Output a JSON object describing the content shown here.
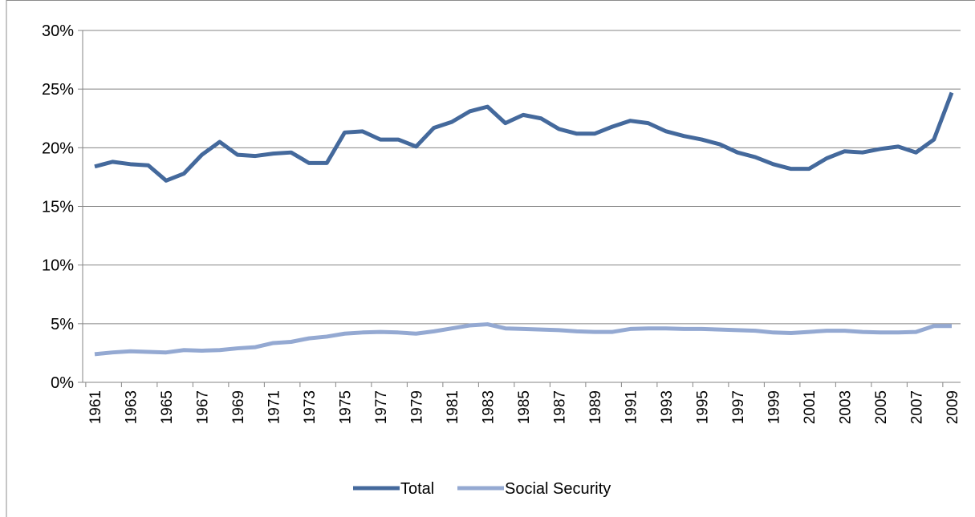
{
  "chart_data": {
    "type": "line",
    "title": "",
    "xlabel": "",
    "ylabel": "",
    "ylim": [
      0,
      30
    ],
    "yticks": [
      "0%",
      "5%",
      "10%",
      "15%",
      "20%",
      "25%",
      "30%"
    ],
    "x": [
      1961,
      1962,
      1963,
      1964,
      1965,
      1966,
      1967,
      1968,
      1969,
      1970,
      1971,
      1972,
      1973,
      1974,
      1975,
      1976,
      1977,
      1978,
      1979,
      1980,
      1981,
      1982,
      1983,
      1984,
      1985,
      1986,
      1987,
      1988,
      1989,
      1990,
      1991,
      1992,
      1993,
      1994,
      1995,
      1996,
      1997,
      1998,
      1999,
      2000,
      2001,
      2002,
      2003,
      2004,
      2005,
      2006,
      2007,
      2008,
      2009
    ],
    "xtick_labels": [
      "1961",
      "1963",
      "1965",
      "1967",
      "1969",
      "1971",
      "1973",
      "1975",
      "1977",
      "1979",
      "1981",
      "1983",
      "1985",
      "1987",
      "1989",
      "1991",
      "1993",
      "1995",
      "1997",
      "1999",
      "2001",
      "2003",
      "2005",
      "2007",
      "2009"
    ],
    "grid": true,
    "legend_position": "bottom",
    "series": [
      {
        "name": "Total",
        "color": "#44699c",
        "values": [
          18.4,
          18.8,
          18.6,
          18.5,
          17.2,
          17.8,
          19.4,
          20.5,
          19.4,
          19.3,
          19.5,
          19.6,
          18.7,
          18.7,
          21.3,
          21.4,
          20.7,
          20.7,
          20.1,
          21.7,
          22.2,
          23.1,
          23.5,
          22.1,
          22.8,
          22.5,
          21.6,
          21.2,
          21.2,
          21.8,
          22.3,
          22.1,
          21.4,
          21.0,
          20.7,
          20.3,
          19.6,
          19.2,
          18.6,
          18.2,
          18.2,
          19.1,
          19.7,
          19.6,
          19.9,
          20.1,
          19.6,
          20.7,
          24.7
        ]
      },
      {
        "name": "Social Security",
        "color": "#94a9d2",
        "values": [
          2.4,
          2.55,
          2.65,
          2.6,
          2.55,
          2.75,
          2.7,
          2.75,
          2.9,
          3.0,
          3.35,
          3.45,
          3.75,
          3.9,
          4.15,
          4.25,
          4.3,
          4.25,
          4.15,
          4.35,
          4.6,
          4.85,
          4.95,
          4.6,
          4.55,
          4.5,
          4.45,
          4.35,
          4.3,
          4.3,
          4.55,
          4.6,
          4.6,
          4.55,
          4.55,
          4.5,
          4.45,
          4.4,
          4.25,
          4.2,
          4.3,
          4.4,
          4.4,
          4.3,
          4.25,
          4.25,
          4.3,
          4.8,
          4.8
        ]
      }
    ]
  }
}
